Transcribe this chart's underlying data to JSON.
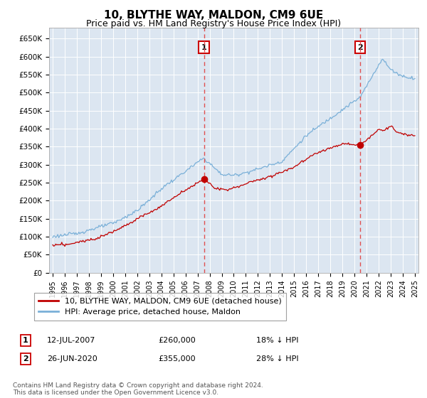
{
  "title": "10, BLYTHE WAY, MALDON, CM9 6UE",
  "subtitle": "Price paid vs. HM Land Registry's House Price Index (HPI)",
  "ylim": [
    0,
    680000
  ],
  "yticks": [
    0,
    50000,
    100000,
    150000,
    200000,
    250000,
    300000,
    350000,
    400000,
    450000,
    500000,
    550000,
    600000,
    650000
  ],
  "ytick_labels": [
    "£0",
    "£50K",
    "£100K",
    "£150K",
    "£200K",
    "£250K",
    "£300K",
    "£350K",
    "£400K",
    "£450K",
    "£500K",
    "£550K",
    "£600K",
    "£650K"
  ],
  "hpi_color": "#7ab0d8",
  "price_color": "#c00000",
  "dashed_line_color": "#e05050",
  "annotation_box_color": "#cc0000",
  "background_color": "#dce6f1",
  "legend_label_property": "10, BLYTHE WAY, MALDON, CM9 6UE (detached house)",
  "legend_label_hpi": "HPI: Average price, detached house, Maldon",
  "purchase1_date_x": 2007.53,
  "purchase1_price": 260000,
  "purchase1_label": "1",
  "purchase2_date_x": 2020.48,
  "purchase2_price": 355000,
  "purchase2_label": "2",
  "annotation1_date": "12-JUL-2007",
  "annotation1_price": "£260,000",
  "annotation1_pct": "18% ↓ HPI",
  "annotation2_date": "26-JUN-2020",
  "annotation2_price": "£355,000",
  "annotation2_pct": "28% ↓ HPI",
  "footer": "Contains HM Land Registry data © Crown copyright and database right 2024.\nThis data is licensed under the Open Government Licence v3.0.",
  "title_fontsize": 11,
  "subtitle_fontsize": 9,
  "xlim_left": 1994.7,
  "xlim_right": 2025.3
}
